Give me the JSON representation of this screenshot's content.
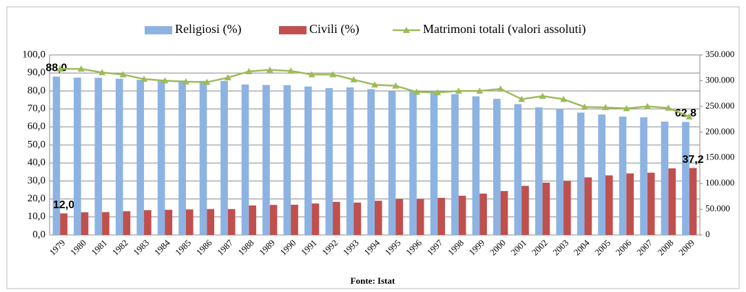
{
  "chart_data": {
    "type": "bar",
    "categories": [
      "1979",
      "1980",
      "1981",
      "1982",
      "1983",
      "1984",
      "1985",
      "1986",
      "1987",
      "1988",
      "1989",
      "1990",
      "1991",
      "1992",
      "1993",
      "1994",
      "1995",
      "1996",
      "1997",
      "1998",
      "1999",
      "2000",
      "2001",
      "2002",
      "2003",
      "2004",
      "2005",
      "2006",
      "2007",
      "2008",
      "2009"
    ],
    "series": [
      {
        "name": "Religiosi (%)",
        "color": "#8db3e2",
        "type": "bar",
        "values": [
          88.0,
          87.4,
          87.3,
          86.8,
          86.2,
          86.0,
          85.8,
          85.6,
          85.6,
          83.6,
          83.3,
          83.2,
          82.5,
          81.6,
          82.0,
          81.0,
          80.0,
          80.0,
          79.4,
          78.2,
          77.0,
          75.6,
          72.7,
          70.9,
          70.0,
          68.0,
          66.9,
          65.8,
          65.4,
          63.0,
          62.8
        ],
        "value_labels": [
          "88,0",
          null,
          null,
          null,
          null,
          null,
          null,
          null,
          null,
          null,
          null,
          null,
          null,
          null,
          null,
          null,
          null,
          null,
          null,
          null,
          null,
          null,
          null,
          null,
          null,
          null,
          null,
          null,
          null,
          null,
          "62,8"
        ]
      },
      {
        "name": "Civili (%)",
        "color": "#c0504d",
        "type": "bar",
        "values": [
          12.0,
          12.6,
          12.7,
          13.2,
          13.8,
          14.0,
          14.2,
          14.4,
          14.4,
          16.4,
          16.7,
          16.8,
          17.5,
          18.4,
          18.0,
          19.0,
          20.0,
          20.0,
          20.6,
          21.8,
          23.0,
          24.4,
          27.3,
          29.1,
          30.0,
          32.0,
          33.1,
          34.2,
          34.6,
          37.0,
          37.2
        ],
        "value_labels": [
          "12,0",
          null,
          null,
          null,
          null,
          null,
          null,
          null,
          null,
          null,
          null,
          null,
          null,
          null,
          null,
          null,
          null,
          null,
          null,
          null,
          null,
          null,
          null,
          null,
          null,
          null,
          null,
          null,
          null,
          null,
          "37,2"
        ]
      },
      {
        "name": "Matrimoni totali (valori assoluti)",
        "color": "#9bbb59",
        "type": "line",
        "axis": "y2",
        "values": [
          323000,
          323000,
          316000,
          312000,
          303000,
          300000,
          298000,
          297000,
          306000,
          318000,
          321000,
          319000,
          312000,
          312000,
          302000,
          292000,
          290000,
          278000,
          277000,
          280000,
          280000,
          284000,
          264000,
          270000,
          264000,
          249000,
          248000,
          246000,
          250000,
          247000,
          230000
        ]
      }
    ],
    "ylim": [
      0,
      100
    ],
    "yticks": [
      {
        "value": 0,
        "label": "0,0"
      },
      {
        "value": 10,
        "label": "10,0"
      },
      {
        "value": 20,
        "label": "20,0"
      },
      {
        "value": 30,
        "label": "30,0"
      },
      {
        "value": 40,
        "label": "40,0"
      },
      {
        "value": 50,
        "label": "50,0"
      },
      {
        "value": 60,
        "label": "60,0"
      },
      {
        "value": 70,
        "label": "70,0"
      },
      {
        "value": 80,
        "label": "80,0"
      },
      {
        "value": 90,
        "label": "90,0"
      },
      {
        "value": 100,
        "label": "100,0"
      }
    ],
    "y2lim": [
      0,
      350000
    ],
    "y2ticks": [
      0,
      {
        "value": 50000,
        "label": "50.000"
      },
      {
        "value": 100000,
        "label": "100.000"
      },
      {
        "value": 150000,
        "label": "150.000"
      },
      {
        "value": 200000,
        "label": "200.000"
      },
      {
        "value": 250000,
        "label": "250.000"
      },
      {
        "value": 300000,
        "label": "300.000"
      },
      {
        "value": 350000,
        "label": "350.000"
      }
    ],
    "grid": true,
    "legend": "top",
    "source": "Fonte: Istat"
  }
}
